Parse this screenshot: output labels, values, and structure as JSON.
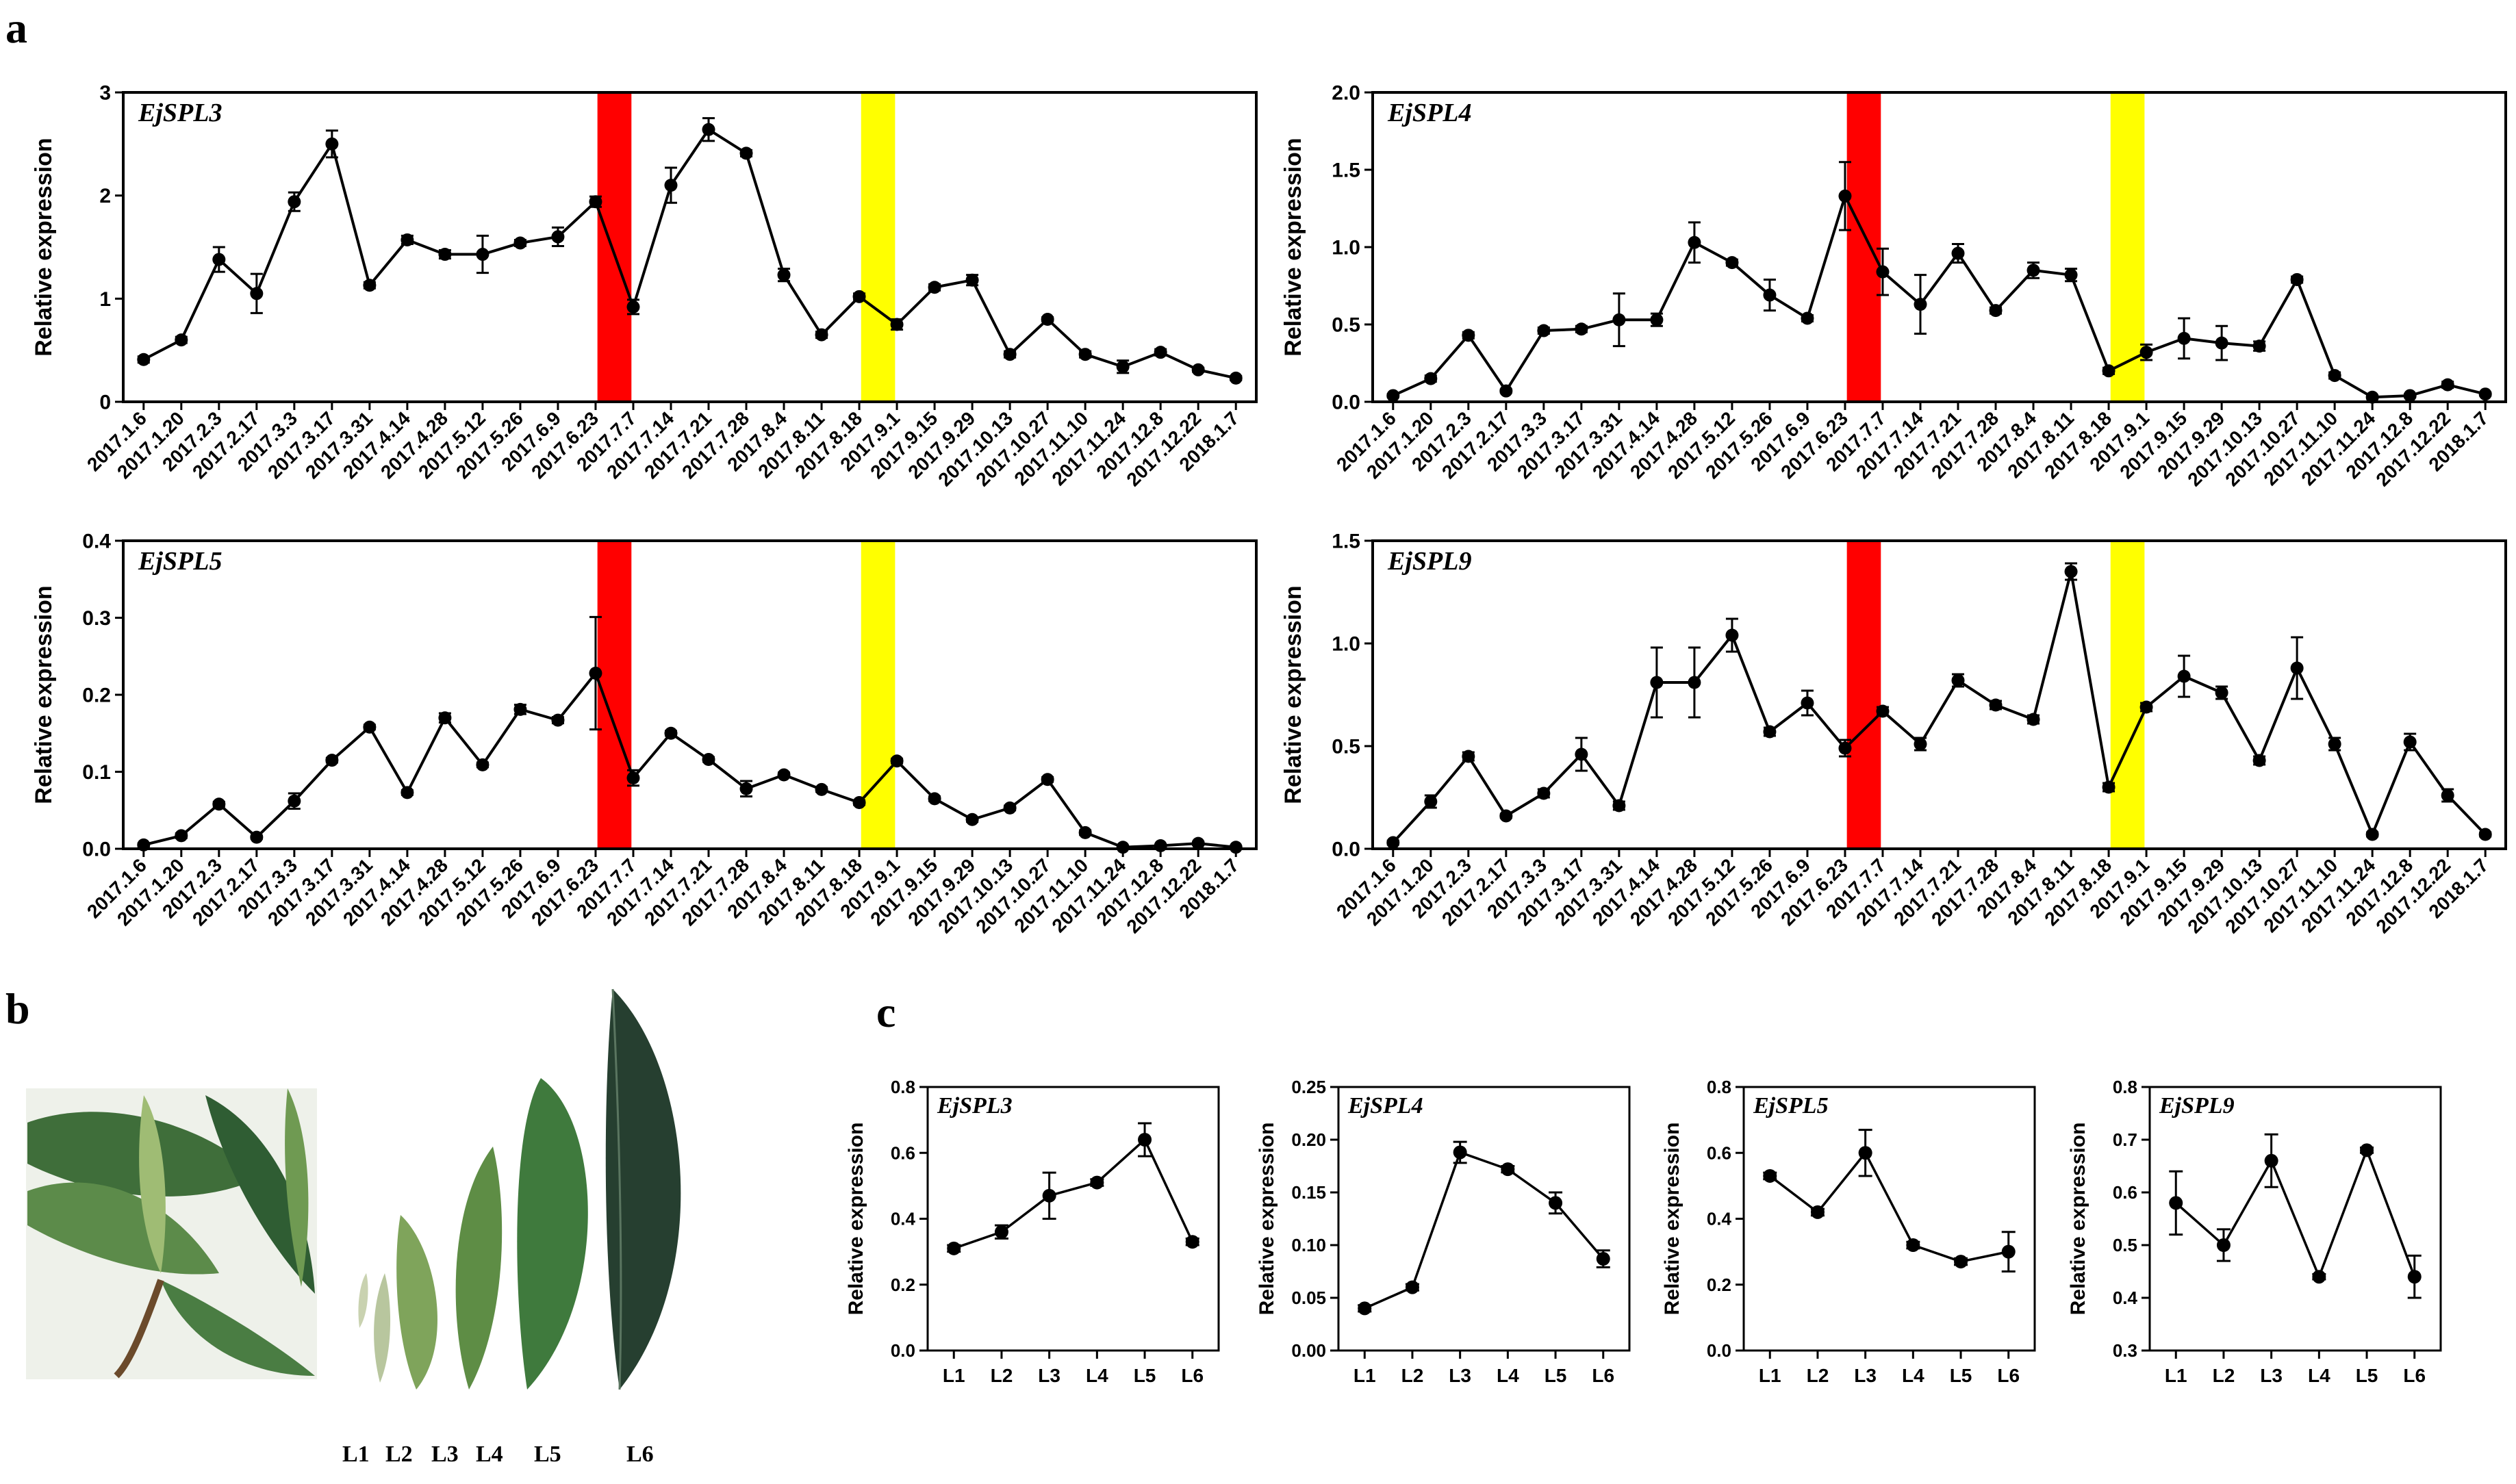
{
  "panel_labels": {
    "a": "a",
    "b": "b",
    "c": "c"
  },
  "colors": {
    "line": "#000000",
    "red_band": "#ff0000",
    "yellow_band": "#ffff00",
    "leaf_dark": "#2b4a35",
    "leaf_mid": "#4f7a45",
    "leaf_light": "#8fb36a",
    "leaf_pale": "#c9d2b0"
  },
  "photo": {
    "shoot_icon": "loquat-shoot-photo",
    "leaf_icon": "loquat-leaf-series-photo",
    "leaf_labels": [
      "L1",
      "L2",
      "L3",
      "L4",
      "L5",
      "L6"
    ]
  },
  "chart_data": [
    {
      "id": "a1",
      "type": "line",
      "title": "EjSPL3",
      "ylabel": "Relative expression",
      "ylim": [
        0,
        3
      ],
      "yticks": [
        "0",
        "1",
        "2",
        "3"
      ],
      "categories": [
        "2017.1.6",
        "2017.1.20",
        "2017.2.3",
        "2017.2.17",
        "2017.3.3",
        "2017.3.17",
        "2017.3.31",
        "2017.4.14",
        "2017.4.28",
        "2017.5.12",
        "2017.5.26",
        "2017.6.9",
        "2017.6.23",
        "2017.7.7",
        "2017.7.14",
        "2017.7.21",
        "2017.7.28",
        "2017.8.4",
        "2017.8.11",
        "2017.8.18",
        "2017.9.1",
        "2017.9.15",
        "2017.9.29",
        "2017.10.13",
        "2017.10.27",
        "2017.11.10",
        "2017.11.24",
        "2017.12.8",
        "2017.12.22",
        "2018.1.7"
      ],
      "values": [
        0.41,
        0.6,
        1.38,
        1.05,
        1.94,
        2.5,
        1.13,
        1.57,
        1.43,
        1.43,
        1.54,
        1.6,
        1.94,
        0.92,
        2.1,
        2.64,
        2.41,
        1.23,
        0.65,
        1.02,
        0.75,
        1.11,
        1.18,
        0.46,
        0.8,
        0.46,
        0.34,
        0.48,
        0.31,
        0.23
      ],
      "errors": [
        0.03,
        0.03,
        0.12,
        0.19,
        0.09,
        0.13,
        0.03,
        0.04,
        0.04,
        0.18,
        0.03,
        0.09,
        0.05,
        0.07,
        0.17,
        0.11,
        0.03,
        0.06,
        0.03,
        0.03,
        0.05,
        0.03,
        0.05,
        0.03,
        0.02,
        0.03,
        0.06,
        0.03,
        0.02,
        0.02
      ],
      "bands": [
        {
          "color": "red",
          "between": [
            "2017.6.23",
            "2017.7.7"
          ]
        },
        {
          "color": "yellow",
          "between": [
            "2017.8.18",
            "2017.9.1"
          ]
        }
      ]
    },
    {
      "id": "a2",
      "type": "line",
      "title": "EjSPL4",
      "ylabel": "Relative expression",
      "ylim": [
        0,
        2
      ],
      "yticks": [
        "0.0",
        "0.5",
        "1.0",
        "1.5",
        "2.0"
      ],
      "categories": [
        "2017.1.6",
        "2017.1.20",
        "2017.2.3",
        "2017.2.17",
        "2017.3.3",
        "2017.3.17",
        "2017.3.31",
        "2017.4.14",
        "2017.4.28",
        "2017.5.12",
        "2017.5.26",
        "2017.6.9",
        "2017.6.23",
        "2017.7.7",
        "2017.7.14",
        "2017.7.21",
        "2017.7.28",
        "2017.8.4",
        "2017.8.11",
        "2017.8.18",
        "2017.9.1",
        "2017.9.15",
        "2017.9.29",
        "2017.10.13",
        "2017.10.27",
        "2017.11.10",
        "2017.11.24",
        "2017.12.8",
        "2017.12.22",
        "2018.1.7"
      ],
      "values": [
        0.04,
        0.15,
        0.43,
        0.07,
        0.46,
        0.47,
        0.53,
        0.53,
        1.03,
        0.9,
        0.69,
        0.54,
        1.33,
        0.84,
        0.63,
        0.96,
        0.59,
        0.85,
        0.82,
        0.2,
        0.32,
        0.41,
        0.38,
        0.36,
        0.79,
        0.17,
        0.03,
        0.04,
        0.11,
        0.05
      ],
      "errors": [
        0.01,
        0.02,
        0.02,
        0.01,
        0.02,
        0.02,
        0.17,
        0.04,
        0.13,
        0.02,
        0.1,
        0.02,
        0.22,
        0.15,
        0.19,
        0.06,
        0.02,
        0.05,
        0.04,
        0.02,
        0.05,
        0.13,
        0.11,
        0.03,
        0.02,
        0.02,
        0.01,
        0.01,
        0.02,
        0.01
      ],
      "bands": [
        {
          "color": "red",
          "between": [
            "2017.6.23",
            "2017.7.7"
          ]
        },
        {
          "color": "yellow",
          "between": [
            "2017.8.18",
            "2017.9.1"
          ]
        }
      ]
    },
    {
      "id": "a3",
      "type": "line",
      "title": "EjSPL5",
      "ylabel": "Relative expression",
      "ylim": [
        0,
        0.4
      ],
      "yticks": [
        "0.0",
        "0.1",
        "0.2",
        "0.3",
        "0.4"
      ],
      "categories": [
        "2017.1.6",
        "2017.1.20",
        "2017.2.3",
        "2017.2.17",
        "2017.3.3",
        "2017.3.17",
        "2017.3.31",
        "2017.4.14",
        "2017.4.28",
        "2017.5.12",
        "2017.5.26",
        "2017.6.9",
        "2017.6.23",
        "2017.7.7",
        "2017.7.14",
        "2017.7.21",
        "2017.7.28",
        "2017.8.4",
        "2017.8.11",
        "2017.8.18",
        "2017.9.1",
        "2017.9.15",
        "2017.9.29",
        "2017.10.13",
        "2017.10.27",
        "2017.11.10",
        "2017.11.24",
        "2017.12.8",
        "2017.12.22",
        "2018.1.7"
      ],
      "values": [
        0.005,
        0.017,
        0.058,
        0.015,
        0.062,
        0.115,
        0.158,
        0.073,
        0.17,
        0.109,
        0.181,
        0.167,
        0.228,
        0.092,
        0.15,
        0.116,
        0.078,
        0.096,
        0.077,
        0.06,
        0.114,
        0.065,
        0.038,
        0.053,
        0.09,
        0.021,
        0.002,
        0.004,
        0.007,
        0.002
      ],
      "errors": [
        0.002,
        0.003,
        0.003,
        0.002,
        0.01,
        0.003,
        0.003,
        0.003,
        0.006,
        0.003,
        0.006,
        0.004,
        0.073,
        0.01,
        0.003,
        0.003,
        0.01,
        0.003,
        0.003,
        0.003,
        0.003,
        0.003,
        0.003,
        0.003,
        0.003,
        0.003,
        0.001,
        0.001,
        0.002,
        0.001
      ],
      "bands": [
        {
          "color": "red",
          "between": [
            "2017.6.23",
            "2017.7.7"
          ]
        },
        {
          "color": "yellow",
          "between": [
            "2017.8.18",
            "2017.9.1"
          ]
        }
      ]
    },
    {
      "id": "a4",
      "type": "line",
      "title": "EjSPL9",
      "ylabel": "Relative expression",
      "ylim": [
        0,
        1.5
      ],
      "yticks": [
        "0.0",
        "0.5",
        "1.0",
        "1.5"
      ],
      "categories": [
        "2017.1.6",
        "2017.1.20",
        "2017.2.3",
        "2017.2.17",
        "2017.3.3",
        "2017.3.17",
        "2017.3.31",
        "2017.4.14",
        "2017.4.28",
        "2017.5.12",
        "2017.5.26",
        "2017.6.9",
        "2017.6.23",
        "2017.7.7",
        "2017.7.14",
        "2017.7.21",
        "2017.7.28",
        "2017.8.4",
        "2017.8.11",
        "2017.8.18",
        "2017.9.1",
        "2017.9.15",
        "2017.9.29",
        "2017.10.13",
        "2017.10.27",
        "2017.11.10",
        "2017.11.24",
        "2017.12.8",
        "2017.12.22",
        "2018.1.7"
      ],
      "values": [
        0.03,
        0.23,
        0.45,
        0.16,
        0.27,
        0.46,
        0.21,
        0.81,
        0.81,
        1.04,
        0.57,
        0.71,
        0.49,
        0.67,
        0.51,
        0.82,
        0.7,
        0.63,
        1.35,
        0.3,
        0.69,
        0.84,
        0.76,
        0.43,
        0.88,
        0.51,
        0.07,
        0.52,
        0.26,
        0.07
      ],
      "errors": [
        0.01,
        0.03,
        0.02,
        0.01,
        0.02,
        0.08,
        0.02,
        0.17,
        0.17,
        0.08,
        0.02,
        0.06,
        0.04,
        0.02,
        0.03,
        0.03,
        0.02,
        0.02,
        0.04,
        0.02,
        0.02,
        0.1,
        0.03,
        0.02,
        0.15,
        0.03,
        0.01,
        0.04,
        0.03,
        0.01
      ],
      "bands": [
        {
          "color": "red",
          "between": [
            "2017.6.23",
            "2017.7.7"
          ]
        },
        {
          "color": "yellow",
          "between": [
            "2017.8.18",
            "2017.9.1"
          ]
        }
      ]
    },
    {
      "id": "c1",
      "type": "line",
      "title": "EjSPL3",
      "ylabel": "Relative expression",
      "ylim": [
        0,
        0.8
      ],
      "yticks": [
        "0.0",
        "0.2",
        "0.4",
        "0.6",
        "0.8"
      ],
      "categories": [
        "L1",
        "L2",
        "L3",
        "L4",
        "L5",
        "L6"
      ],
      "values": [
        0.31,
        0.36,
        0.47,
        0.51,
        0.64,
        0.33
      ],
      "errors": [
        0.01,
        0.02,
        0.07,
        0.01,
        0.05,
        0.01
      ],
      "bands": []
    },
    {
      "id": "c2",
      "type": "line",
      "title": "EjSPL4",
      "ylabel": "Relative expression",
      "ylim": [
        0,
        0.25
      ],
      "yticks": [
        "0.00",
        "0.05",
        "0.10",
        "0.15",
        "0.20",
        "0.25"
      ],
      "categories": [
        "L1",
        "L2",
        "L3",
        "L4",
        "L5",
        "L6"
      ],
      "values": [
        0.04,
        0.06,
        0.188,
        0.172,
        0.14,
        0.087
      ],
      "errors": [
        0.003,
        0.003,
        0.01,
        0.003,
        0.01,
        0.008
      ],
      "bands": []
    },
    {
      "id": "c3",
      "type": "line",
      "title": "EjSPL5",
      "ylabel": "Relative expression",
      "ylim": [
        0,
        0.8
      ],
      "yticks": [
        "0.0",
        "0.2",
        "0.4",
        "0.6",
        "0.8"
      ],
      "categories": [
        "L1",
        "L2",
        "L3",
        "L4",
        "L5",
        "L6"
      ],
      "values": [
        0.53,
        0.42,
        0.6,
        0.32,
        0.27,
        0.3
      ],
      "errors": [
        0.01,
        0.01,
        0.07,
        0.01,
        0.01,
        0.06
      ],
      "bands": []
    },
    {
      "id": "c4",
      "type": "line",
      "title": "EjSPL9",
      "ylabel": "Relative expression",
      "ylim": [
        0.3,
        0.8
      ],
      "yticks": [
        "0.3",
        "0.4",
        "0.5",
        "0.6",
        "0.7",
        "0.8"
      ],
      "categories": [
        "L1",
        "L2",
        "L3",
        "L4",
        "L5",
        "L6"
      ],
      "values": [
        0.58,
        0.5,
        0.66,
        0.44,
        0.68,
        0.44
      ],
      "errors": [
        0.06,
        0.03,
        0.05,
        0.005,
        0.005,
        0.04
      ],
      "bands": []
    }
  ]
}
